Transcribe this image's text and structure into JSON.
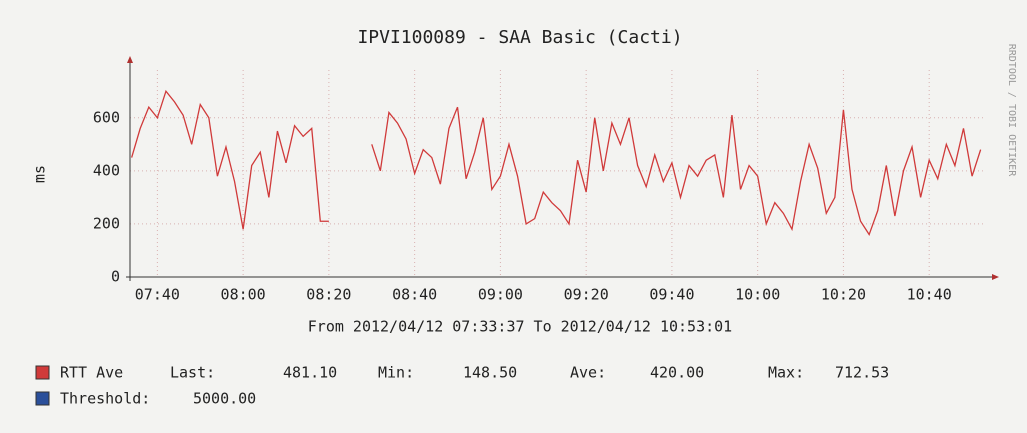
{
  "chart_data": {
    "type": "line",
    "title": "IPVI100089  - SAA Basic (Cacti)",
    "y_label": "ms",
    "side_label": "RRDTOOL / TOBI OETIKER",
    "range_text": "From 2012/04/12 07:33:37 To 2012/04/12 10:53:01",
    "xlim": [
      "07:33:37",
      "10:53:01"
    ],
    "xticks": [
      "07:40",
      "08:00",
      "08:20",
      "08:40",
      "09:00",
      "09:20",
      "09:40",
      "10:00",
      "10:20",
      "10:40"
    ],
    "ylim": [
      0,
      780
    ],
    "yticks": [
      0,
      200,
      400,
      600
    ],
    "grid": true,
    "x": [
      "07:34",
      "07:36",
      "07:38",
      "07:40",
      "07:42",
      "07:44",
      "07:46",
      "07:48",
      "07:50",
      "07:52",
      "07:54",
      "07:56",
      "07:58",
      "08:00",
      "08:02",
      "08:04",
      "08:06",
      "08:08",
      "08:10",
      "08:12",
      "08:14",
      "08:16",
      "08:18",
      "08:20",
      "08:22",
      "08:24",
      "08:26",
      "08:28",
      "08:30",
      "08:32",
      "08:34",
      "08:36",
      "08:38",
      "08:40",
      "08:42",
      "08:44",
      "08:46",
      "08:48",
      "08:50",
      "08:52",
      "08:54",
      "08:56",
      "08:58",
      "09:00",
      "09:02",
      "09:04",
      "09:06",
      "09:08",
      "09:10",
      "09:12",
      "09:14",
      "09:16",
      "09:18",
      "09:20",
      "09:22",
      "09:24",
      "09:26",
      "09:28",
      "09:30",
      "09:32",
      "09:34",
      "09:36",
      "09:38",
      "09:40",
      "09:42",
      "09:44",
      "09:46",
      "09:48",
      "09:50",
      "09:52",
      "09:54",
      "09:56",
      "09:58",
      "10:00",
      "10:02",
      "10:04",
      "10:06",
      "10:08",
      "10:10",
      "10:12",
      "10:14",
      "10:16",
      "10:18",
      "10:20",
      "10:22",
      "10:24",
      "10:26",
      "10:28",
      "10:30",
      "10:32",
      "10:34",
      "10:36",
      "10:38",
      "10:40",
      "10:42",
      "10:44",
      "10:46",
      "10:48",
      "10:50",
      "10:52"
    ],
    "series": [
      {
        "name": "RTT Ave",
        "color": "#d03a3a",
        "values": [
          450,
          560,
          640,
          600,
          700,
          660,
          610,
          500,
          650,
          600,
          380,
          490,
          360,
          180,
          420,
          470,
          300,
          550,
          430,
          570,
          530,
          560,
          210,
          210,
          null,
          null,
          null,
          null,
          500,
          400,
          620,
          580,
          520,
          390,
          480,
          450,
          350,
          560,
          640,
          370,
          470,
          600,
          330,
          380,
          500,
          380,
          200,
          220,
          320,
          280,
          250,
          200,
          440,
          320,
          600,
          400,
          580,
          500,
          600,
          420,
          340,
          460,
          360,
          430,
          300,
          420,
          380,
          440,
          460,
          300,
          610,
          330,
          420,
          380,
          200,
          280,
          240,
          180,
          360,
          500,
          410,
          240,
          300,
          630,
          330,
          210,
          160,
          250,
          420,
          230,
          400,
          490,
          300,
          440,
          370,
          500,
          420,
          560,
          380,
          480
        ]
      }
    ],
    "legend": [
      {
        "stats": [
          [
            "Last:",
            "481.10"
          ],
          [
            "Min:",
            "148.50"
          ],
          [
            "Ave:",
            "420.00"
          ],
          [
            "Max:",
            "712.53"
          ]
        ]
      },
      {
        "name": "Threshold:",
        "color": "#2a4f9a",
        "text": "5000.00"
      }
    ]
  }
}
